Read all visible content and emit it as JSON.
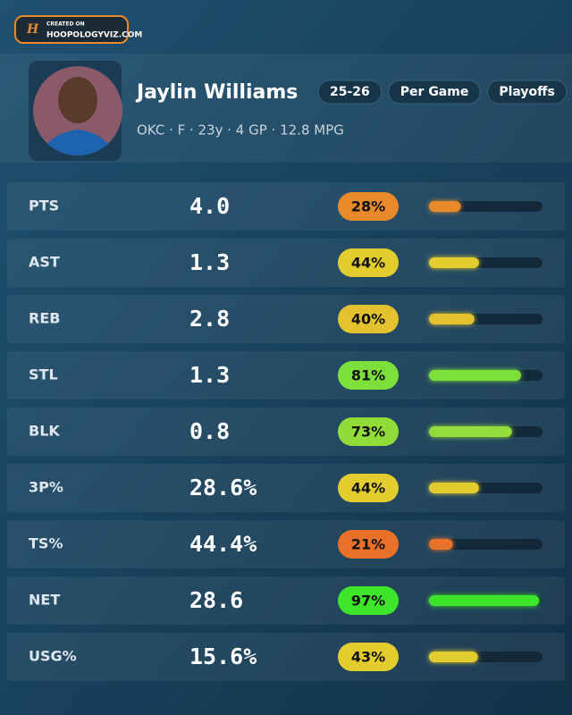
{
  "logo": {
    "line1": "CREATED ON",
    "line2": "HOOPOLOGYVIZ.COM"
  },
  "header": {
    "name": "Jaylin Williams",
    "pills": [
      "25-26",
      "Per Game",
      "Playoffs"
    ],
    "subtitle": "OKC · F · 23y · 4 GP · 12.8 MPG"
  },
  "rows": [
    {
      "label": "PTS",
      "value": "4.0",
      "percentile": 28,
      "percentile_label": "28%",
      "color": "#e8892a"
    },
    {
      "label": "AST",
      "value": "1.3",
      "percentile": 44,
      "percentile_label": "44%",
      "color": "#e3cc2e"
    },
    {
      "label": "REB",
      "value": "2.8",
      "percentile": 40,
      "percentile_label": "40%",
      "color": "#e3c22e"
    },
    {
      "label": "STL",
      "value": "1.3",
      "percentile": 81,
      "percentile_label": "81%",
      "color": "#7de03a"
    },
    {
      "label": "BLK",
      "value": "0.8",
      "percentile": 73,
      "percentile_label": "73%",
      "color": "#92dc3a"
    },
    {
      "label": "3P%",
      "value": "28.6%",
      "percentile": 44,
      "percentile_label": "44%",
      "color": "#e3cc2e"
    },
    {
      "label": "TS%",
      "value": "44.4%",
      "percentile": 21,
      "percentile_label": "21%",
      "color": "#e8712a"
    },
    {
      "label": "NET",
      "value": "28.6",
      "percentile": 97,
      "percentile_label": "97%",
      "color": "#3ee52a"
    },
    {
      "label": "USG%",
      "value": "15.6%",
      "percentile": 43,
      "percentile_label": "43%",
      "color": "#e3cc2e"
    }
  ]
}
